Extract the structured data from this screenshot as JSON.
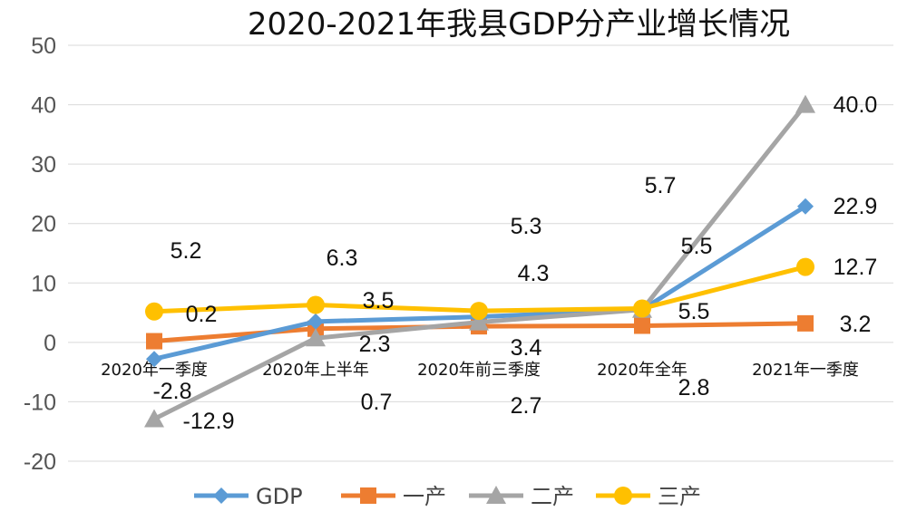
{
  "chart_data": {
    "type": "line",
    "title": "2020-2021年我县GDP分产业增长情况",
    "categories": [
      "2020年一季度",
      "2020年上半年",
      "2020年前三季度",
      "2020年全年",
      "2021年一季度"
    ],
    "ylim": [
      -20,
      50
    ],
    "yticks": [
      -20,
      -10,
      0,
      10,
      20,
      30,
      40,
      50
    ],
    "grid": true,
    "legend_position": "bottom",
    "series": [
      {
        "name": "GDP",
        "color": "#5b9bd5",
        "marker": "diamond",
        "values": [
          -2.8,
          3.5,
          4.3,
          5.5,
          22.9
        ],
        "labels": [
          "-2.8",
          "3.5",
          "4.3",
          "5.5",
          "22.9"
        ]
      },
      {
        "name": "一产",
        "color": "#ed7d31",
        "marker": "square",
        "values": [
          0.2,
          2.3,
          2.7,
          2.8,
          3.2
        ],
        "labels": [
          "0.2",
          "2.3",
          "2.7",
          "2.8",
          "3.2"
        ]
      },
      {
        "name": "二产",
        "color": "#a5a5a5",
        "marker": "triangle",
        "values": [
          -12.9,
          0.7,
          3.4,
          5.5,
          40.0
        ],
        "labels": [
          "-12.9",
          "0.7",
          "3.4",
          "5.5",
          "40.0"
        ]
      },
      {
        "name": "三产",
        "color": "#ffc000",
        "marker": "circle",
        "values": [
          5.2,
          6.3,
          5.3,
          5.7,
          12.7
        ],
        "labels": [
          "5.2",
          "6.3",
          "5.3",
          "5.7",
          "12.7"
        ]
      }
    ]
  }
}
